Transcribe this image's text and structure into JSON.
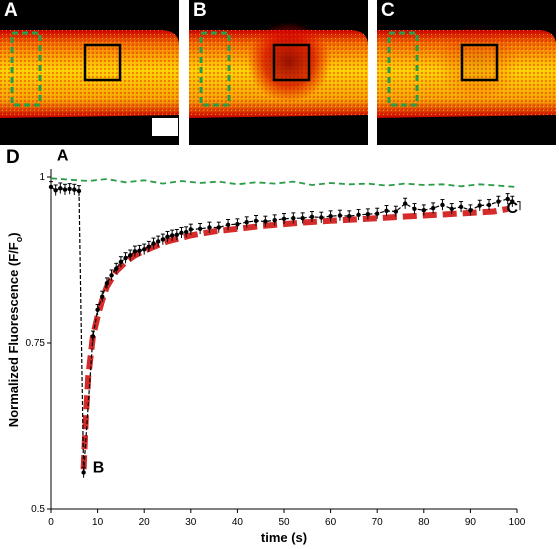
{
  "panels": [
    {
      "label": "A",
      "bleached": 0,
      "show_scale_bar": true
    },
    {
      "label": "B",
      "bleached": 1,
      "show_scale_bar": false
    },
    {
      "label": "C",
      "bleached": 0.2,
      "show_scale_bar": false
    }
  ],
  "panel_d_label": "D",
  "colors": {
    "background_cell_hot": "#ffd400",
    "background_cell_edge": "#c80000",
    "roi_bleach": "#000000",
    "roi_reference": "#2a9d48",
    "fit_line": "#d62b2b",
    "data_line": "#000000"
  },
  "chart_data": {
    "type": "line",
    "title": "",
    "xlabel": "time (s)",
    "ylabel": "Normalized Fluorescence (F/F",
    "ylabel_subscript": "o",
    "ylabel_suffix": ")",
    "xlim": [
      0,
      100
    ],
    "ylim": [
      0.5,
      1.0
    ],
    "xticks": [
      0,
      10,
      20,
      30,
      40,
      50,
      60,
      70,
      80,
      90,
      100
    ],
    "yticks": [
      0.5,
      0.75,
      1.0
    ],
    "ytick_labels": [
      "0.5",
      "0.75",
      "1"
    ],
    "annotations": [
      {
        "text": "A",
        "x": 2.5,
        "y": 1.025
      },
      {
        "text": "B",
        "x": 10.2,
        "y": 0.555
      },
      {
        "text": "C",
        "x": 99,
        "y": 0.946
      }
    ],
    "series": [
      {
        "style": "reference-dashed",
        "x": [
          0,
          4,
          8,
          12,
          16,
          20,
          24,
          28,
          32,
          36,
          40,
          44,
          48,
          52,
          56,
          60,
          64,
          68,
          72,
          76,
          80,
          84,
          88,
          92,
          96,
          100
        ],
        "values": [
          0.998,
          0.996,
          0.994,
          0.997,
          0.992,
          0.995,
          0.99,
          0.994,
          0.991,
          0.993,
          0.989,
          0.992,
          0.99,
          0.993,
          0.988,
          0.991,
          0.989,
          0.99,
          0.987,
          0.99,
          0.988,
          0.989,
          0.986,
          0.989,
          0.987,
          0.985
        ]
      },
      {
        "style": "data-with-errorbars",
        "x": [
          0,
          1,
          2,
          3,
          4,
          5,
          6,
          7,
          9,
          10,
          11,
          12,
          13,
          14,
          15,
          16,
          17,
          18,
          19,
          20,
          21,
          22,
          23,
          24,
          25,
          26,
          27,
          28,
          29,
          30,
          32,
          34,
          36,
          38,
          40,
          42,
          44,
          46,
          48,
          50,
          52,
          54,
          56,
          58,
          60,
          62,
          64,
          66,
          68,
          70,
          72,
          74,
          76,
          78,
          80,
          82,
          84,
          86,
          88,
          90,
          92,
          94,
          96,
          98,
          99
        ],
        "values": [
          0.985,
          0.98,
          0.983,
          0.981,
          0.982,
          0.981,
          0.979,
          0.555,
          0.76,
          0.8,
          0.82,
          0.84,
          0.852,
          0.862,
          0.872,
          0.878,
          0.882,
          0.888,
          0.889,
          0.891,
          0.895,
          0.9,
          0.903,
          0.906,
          0.91,
          0.912,
          0.913,
          0.916,
          0.917,
          0.921,
          0.922,
          0.924,
          0.924,
          0.928,
          0.929,
          0.932,
          0.934,
          0.933,
          0.935,
          0.937,
          0.938,
          0.938,
          0.94,
          0.939,
          0.941,
          0.942,
          0.941,
          0.943,
          0.944,
          0.945,
          0.949,
          0.948,
          0.96,
          0.952,
          0.95,
          0.953,
          0.958,
          0.952,
          0.955,
          0.95,
          0.957,
          0.958,
          0.963,
          0.967,
          0.963
        ],
        "error": 0.008
      },
      {
        "style": "fit-dashed",
        "x": [
          7,
          7.5,
          8,
          9,
          10,
          11,
          12,
          14,
          16,
          18,
          20,
          25,
          30,
          35,
          40,
          45,
          50,
          55,
          60,
          65,
          70,
          75,
          80,
          85,
          90,
          95,
          98
        ],
        "values": [
          0.56,
          0.64,
          0.7,
          0.76,
          0.79,
          0.815,
          0.835,
          0.858,
          0.872,
          0.882,
          0.889,
          0.903,
          0.912,
          0.918,
          0.922,
          0.926,
          0.929,
          0.932,
          0.934,
          0.936,
          0.938,
          0.94,
          0.942,
          0.944,
          0.946,
          0.948,
          0.952
        ]
      }
    ]
  }
}
